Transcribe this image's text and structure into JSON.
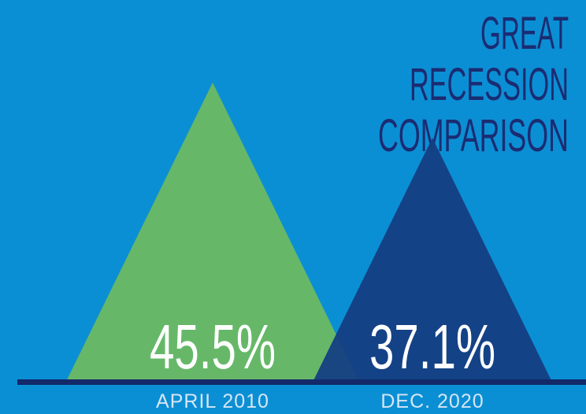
{
  "chart_data": {
    "type": "triangle",
    "title": [
      "GREAT",
      "RECESSION",
      "COMPARISON"
    ],
    "categories": [
      "APRIL 2010",
      "DEC. 2020"
    ],
    "values": [
      45.5,
      37.1
    ],
    "value_labels": [
      "45.5%",
      "37.1%"
    ],
    "colors": [
      "#6cba62",
      "#153e82"
    ]
  }
}
